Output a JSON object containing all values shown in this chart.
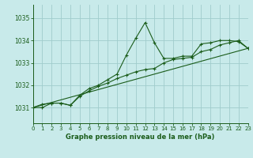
{
  "title": "Graphe pression niveau de la mer (hPa)",
  "background_color": "#c8eaea",
  "grid_color": "#a0cccc",
  "line_color": "#1a5c1a",
  "xlim": [
    0,
    23
  ],
  "ylim": [
    1030.3,
    1035.6
  ],
  "yticks": [
    1031,
    1032,
    1033,
    1034,
    1035
  ],
  "xticks": [
    0,
    1,
    2,
    3,
    4,
    5,
    6,
    7,
    8,
    9,
    10,
    11,
    12,
    13,
    14,
    15,
    16,
    17,
    18,
    19,
    20,
    21,
    22,
    23
  ],
  "line1_x": [
    0,
    1,
    2,
    3,
    4,
    5,
    6,
    7,
    8,
    9,
    10,
    11,
    12,
    13,
    14,
    15,
    16,
    17,
    18,
    19,
    20,
    21,
    22,
    23
  ],
  "line1_y": [
    1031.0,
    1031.15,
    1031.2,
    1031.2,
    1031.1,
    1031.55,
    1031.85,
    1032.0,
    1032.25,
    1032.5,
    1033.35,
    1034.1,
    1034.8,
    1033.9,
    1033.2,
    1033.2,
    1033.3,
    1033.3,
    1033.85,
    1033.9,
    1034.0,
    1034.0,
    1033.95,
    1033.65
  ],
  "line2_x": [
    0,
    1,
    2,
    3,
    4,
    5,
    6,
    7,
    8,
    9,
    10,
    11,
    12,
    13,
    14,
    15,
    16,
    17,
    18,
    19,
    20,
    21,
    22,
    23
  ],
  "line2_y": [
    1031.0,
    1031.0,
    1031.2,
    1031.2,
    1031.1,
    1031.5,
    1031.75,
    1031.95,
    1032.1,
    1032.3,
    1032.45,
    1032.6,
    1032.7,
    1032.75,
    1033.0,
    1033.15,
    1033.2,
    1033.25,
    1033.5,
    1033.6,
    1033.8,
    1033.9,
    1034.0,
    1033.65
  ],
  "line3_x": [
    0,
    23
  ],
  "line3_y": [
    1031.0,
    1033.65
  ]
}
